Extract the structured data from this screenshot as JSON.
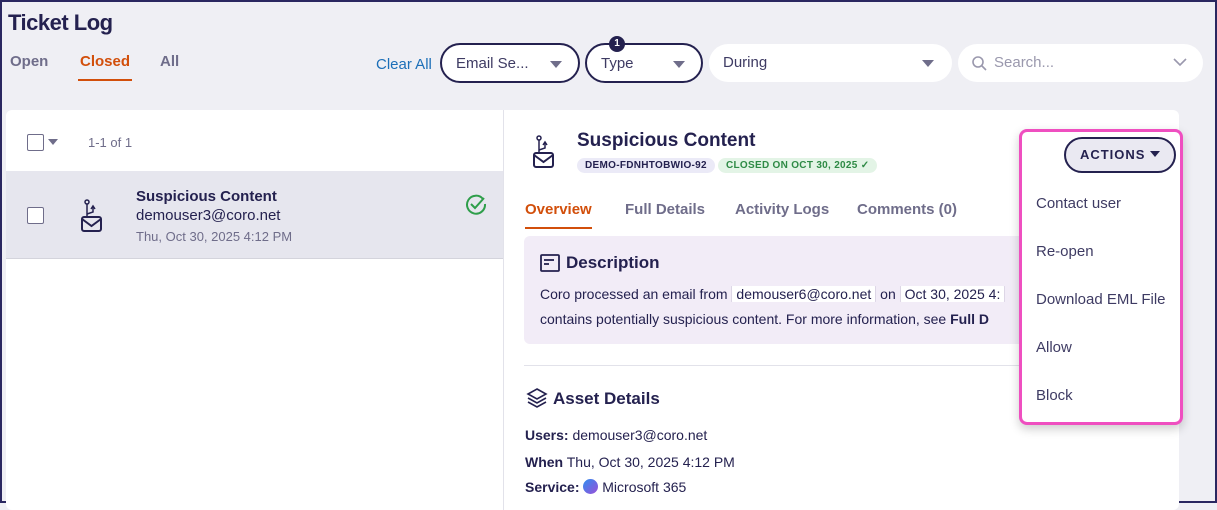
{
  "header": {
    "title": "Ticket Log"
  },
  "tabs": [
    {
      "label": "Open"
    },
    {
      "label": "Closed",
      "active": true
    },
    {
      "label": "All"
    }
  ],
  "filters": {
    "clear_all": "Clear All",
    "email_security": "Email Se...",
    "type": "Type",
    "type_count": "1",
    "during": "During",
    "search_placeholder": "Search..."
  },
  "list": {
    "pagination": "1-1 of 1",
    "items": [
      {
        "title": "Suspicious Content",
        "user": "demouser3@coro.net",
        "date": "Thu, Oct 30, 2025 4:12 PM",
        "status": "resolved"
      }
    ]
  },
  "detail": {
    "title": "Suspicious Content",
    "ticket_id": "DEMO-FDNHTOBWIO-92",
    "closed_badge": "CLOSED ON OCT 30, 2025 ✓",
    "tabs": [
      {
        "label": "Overview"
      },
      {
        "label": "Full Details"
      },
      {
        "label": "Activity Logs"
      },
      {
        "label": "Comments (0)"
      }
    ],
    "description": {
      "heading": "Description",
      "text1": "Coro processed an email from",
      "sender": "demouser6@coro.net",
      "on": "on",
      "date": "Oct 30, 2025 4:",
      "text2": "contains potentially suspicious content. For more information, see",
      "link": "Full D"
    },
    "asset": {
      "heading": "Asset Details",
      "users_label": "Users:",
      "users": "demouser3@coro.net",
      "when_label": "When",
      "when": "Thu, Oct 30, 2025 4:12 PM",
      "service_label": "Service:",
      "service": "Microsoft 365"
    }
  },
  "actions": {
    "label": "ACTIONS",
    "items": [
      "Contact user",
      "Re-open",
      "Download EML File",
      "Allow",
      "Block"
    ]
  },
  "colors": {
    "accent": "#d24f0b",
    "primary": "#24214f",
    "highlight": "#ef4fc0",
    "success": "#2e9e4a"
  }
}
